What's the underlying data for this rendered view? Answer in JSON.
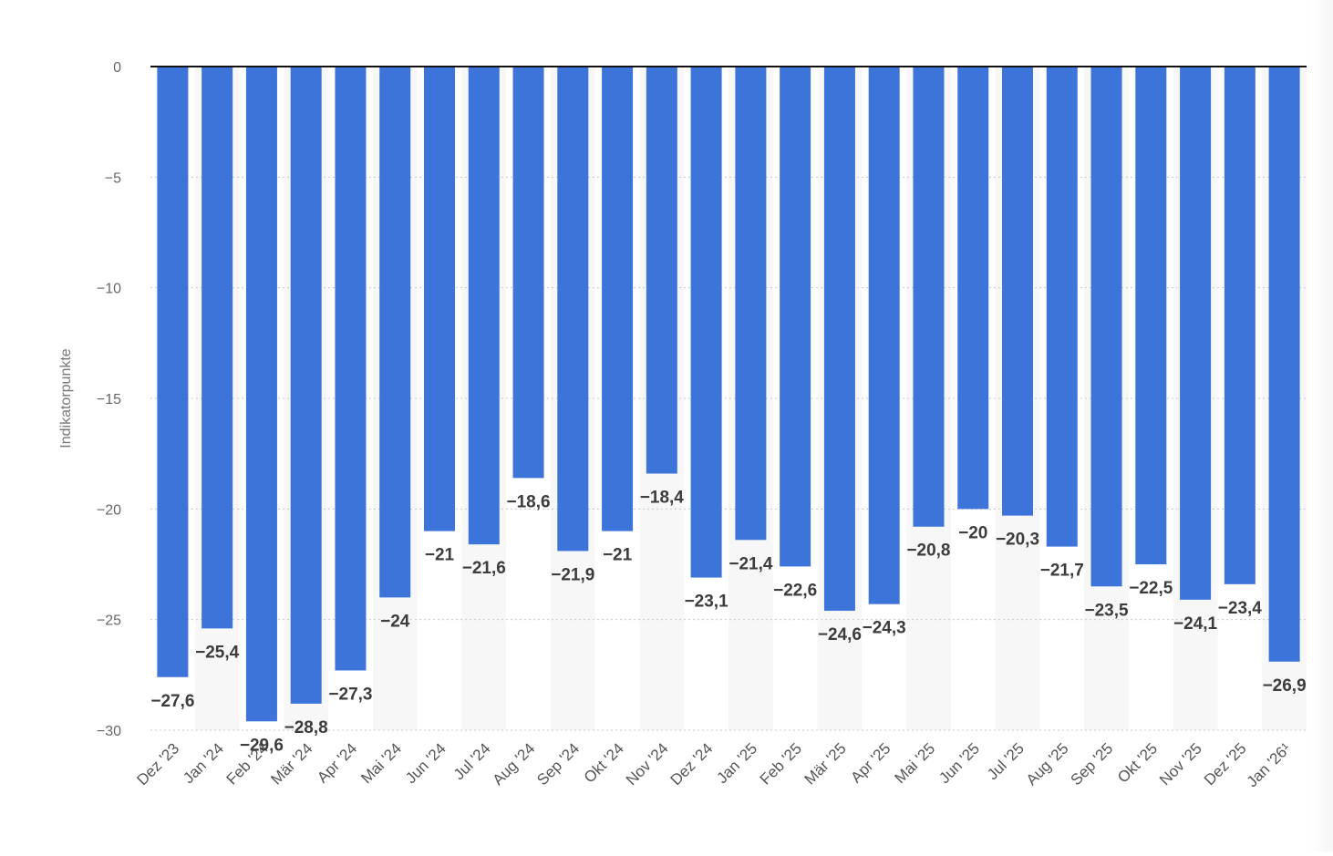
{
  "chart_data": {
    "type": "bar",
    "ylabel": "Indikatorpunkte",
    "xlabel": "",
    "ylim": [
      -30,
      0
    ],
    "yticks": [
      0,
      -5,
      -10,
      -15,
      -20,
      -25,
      -30
    ],
    "ytick_labels": [
      "0",
      "-5",
      "-10",
      "-15",
      "-20",
      "-25",
      "-30"
    ],
    "grid": "horizontal-dotted",
    "alternating_column_shading": true,
    "bar_color": "#3d74d9",
    "categories": [
      "Dez '23",
      "Jan '24",
      "Feb '24",
      "Mär '24",
      "Apr '24",
      "Mai '24",
      "Jun '24",
      "Jul '24",
      "Aug '24",
      "Sep '24",
      "Okt '24",
      "Nov '24",
      "Dez '24",
      "Jan '25",
      "Feb '25",
      "Mär '25",
      "Apr '25",
      "Mai '25",
      "Jun '25",
      "Jul '25",
      "Aug '25",
      "Sep '25",
      "Okt '25",
      "Nov '25",
      "Dez '25",
      "Jan '26¹"
    ],
    "values": [
      -27.6,
      -25.4,
      -29.6,
      -28.8,
      -27.3,
      -24,
      -21,
      -21.6,
      -18.6,
      -21.9,
      -21,
      -18.4,
      -23.1,
      -21.4,
      -22.6,
      -24.6,
      -24.3,
      -20.8,
      -20,
      -20.3,
      -21.7,
      -23.5,
      -22.5,
      -24.1,
      -23.4,
      -26.9
    ],
    "value_labels": [
      "-27,6",
      "-25,4",
      "-29,6",
      "-28,8",
      "-27,3",
      "-24",
      "-21",
      "-21,6",
      "-18,6",
      "-21,9",
      "-21",
      "-18,4",
      "-23,1",
      "-21,4",
      "-22,6",
      "-24,6",
      "-24,3",
      "-20,8",
      "-20",
      "-20,3",
      "-21,7",
      "-23,5",
      "-22,5",
      "-24,1",
      "-23,4",
      "-26,9"
    ]
  }
}
